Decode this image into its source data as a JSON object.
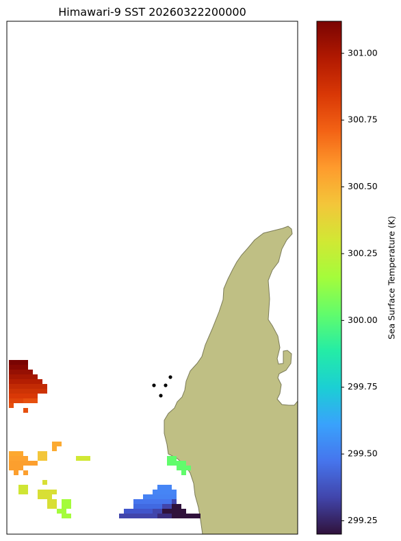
{
  "title": "Himawari-9 SST 20260322200000",
  "colorbar": {
    "label": "Sea Surface Temperature (K)",
    "colormap": "turbo",
    "range": [
      299.2,
      301.12
    ],
    "ticks": [
      "299.25",
      "299.50",
      "299.75",
      "300.00",
      "300.25",
      "300.50",
      "300.75",
      "301.00"
    ],
    "stops": [
      "#30123b",
      "#4145ab",
      "#4675ed",
      "#39a2fc",
      "#1bcfd4",
      "#24eca6",
      "#61fc6c",
      "#a4fc3b",
      "#d1e834",
      "#f3c63a",
      "#fe9b2d",
      "#f36315",
      "#d93806",
      "#b11901",
      "#7a0402"
    ]
  },
  "colors": {
    "land": "#bfbf84",
    "coastline": "#7a7a57",
    "station_dots": "#000000"
  }
}
